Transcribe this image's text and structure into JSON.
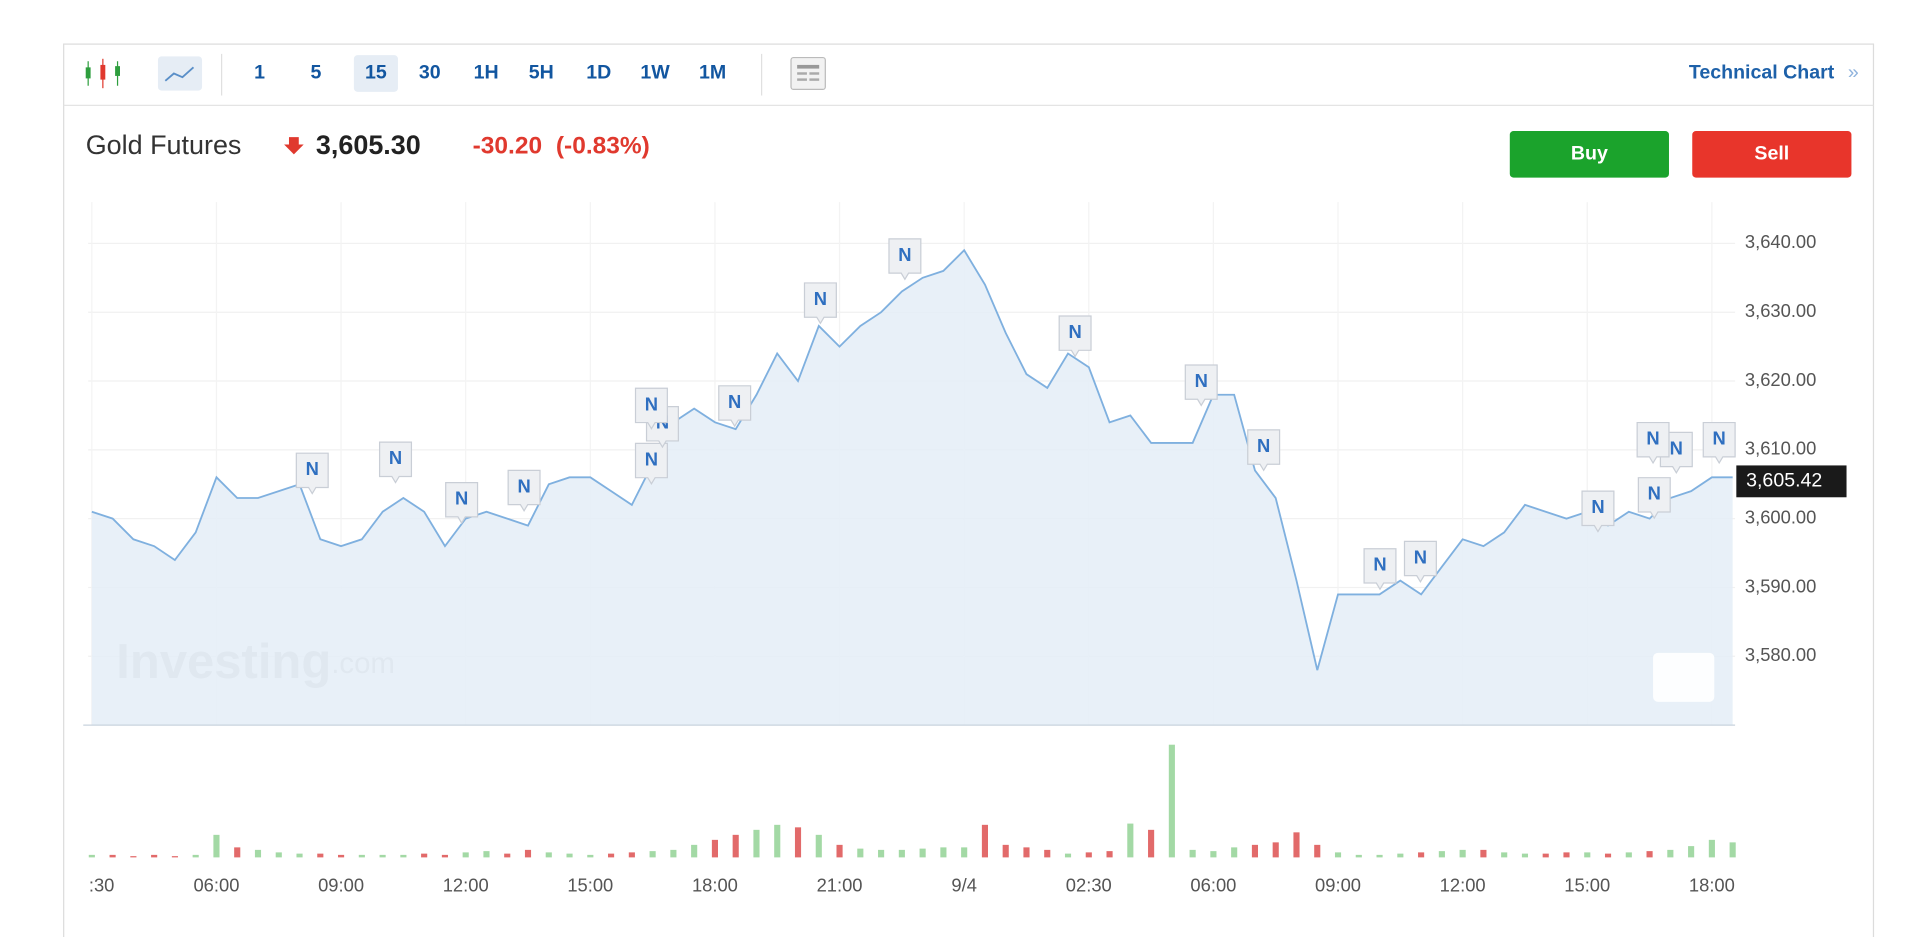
{
  "toolbar": {
    "intervals": [
      "1",
      "5",
      "15",
      "30",
      "1H",
      "5H",
      "1D",
      "1W",
      "1M"
    ],
    "active": "15",
    "link": "Technical Chart",
    "link_arrow": "»"
  },
  "header": {
    "name": "Gold Futures",
    "price": "3,605.30",
    "change": "-30.20",
    "change_pct": "(-0.83%)",
    "buy": "Buy",
    "sell": "Sell"
  },
  "watermark": {
    "brand": "Investing",
    "suffix": ".com"
  },
  "news_label": "N",
  "chart_data": {
    "type": "area",
    "categories": [
      ":30",
      null,
      null,
      null,
      null,
      null,
      "06:00",
      null,
      null,
      null,
      null,
      null,
      "09:00",
      null,
      null,
      null,
      null,
      null,
      "12:00",
      null,
      null,
      null,
      null,
      null,
      "15:00",
      null,
      null,
      null,
      null,
      null,
      "18:00",
      null,
      null,
      null,
      null,
      null,
      "21:00",
      null,
      null,
      null,
      null,
      null,
      "9/4",
      null,
      null,
      null,
      null,
      null,
      "02:30",
      null,
      null,
      null,
      null,
      null,
      "06:00",
      null,
      null,
      null,
      null,
      null,
      "09:00",
      null,
      null,
      null,
      null,
      null,
      "12:00",
      null,
      null,
      null,
      null,
      null,
      "15:00",
      null,
      null,
      null,
      null,
      null,
      "18:00",
      null
    ],
    "values": [
      3601,
      3600,
      3597,
      3596,
      3594,
      3598,
      3606,
      3603,
      3603,
      3604,
      3605,
      3597,
      3596,
      3597,
      3601,
      3603,
      3601,
      3596,
      3600,
      3601,
      3600,
      3599,
      3605,
      3606,
      3606,
      3604,
      3602,
      3608,
      3614,
      3616,
      3614,
      3613,
      3618,
      3624,
      3620,
      3628,
      3625,
      3628,
      3630,
      3633,
      3635,
      3636,
      3639,
      3634,
      3627,
      3621,
      3619,
      3624,
      3622,
      3614,
      3615,
      3611,
      3611,
      3611,
      3618,
      3618,
      3607,
      3603,
      3591,
      3578,
      3589,
      3589,
      3589,
      3591,
      3589,
      3593,
      3597,
      3596,
      3598,
      3602,
      3601,
      3600,
      3601,
      3599,
      3601,
      3600,
      3603,
      3604,
      3606,
      3606
    ],
    "color": "#7fb0df",
    "fill": "#e4edf7",
    "ylim": [
      3570,
      3646
    ],
    "yticks": [
      {
        "value": 3580,
        "label": "3,580.00"
      },
      {
        "value": 3590,
        "label": "3,590.00"
      },
      {
        "value": 3600,
        "label": "3,600.00"
      },
      {
        "value": 3610,
        "label": "3,610.00"
      },
      {
        "value": 3620,
        "label": "3,620.00"
      },
      {
        "value": 3630,
        "label": "3,630.00"
      },
      {
        "value": 3640,
        "label": "3,640.00"
      }
    ],
    "last_price": {
      "value": 3605.42,
      "label": "3,605.42"
    },
    "grid": true,
    "volume": {
      "values": [
        2,
        2,
        1,
        2,
        1,
        2,
        18,
        8,
        6,
        4,
        3,
        3,
        2,
        2,
        2,
        2,
        3,
        2,
        4,
        5,
        3,
        6,
        4,
        3,
        2,
        3,
        4,
        5,
        6,
        10,
        14,
        18,
        22,
        26,
        24,
        18,
        10,
        7,
        6,
        6,
        7,
        8,
        8,
        26,
        10,
        8,
        6,
        3,
        4,
        5,
        27,
        22,
        90,
        6,
        5,
        8,
        10,
        12,
        20,
        10,
        4,
        2,
        2,
        3,
        4,
        5,
        6,
        6,
        4,
        3,
        3,
        4,
        4,
        3,
        4,
        5,
        6,
        9,
        14,
        12
      ],
      "up_color": "#a3d9a5",
      "down_color": "#e26a6a"
    }
  }
}
